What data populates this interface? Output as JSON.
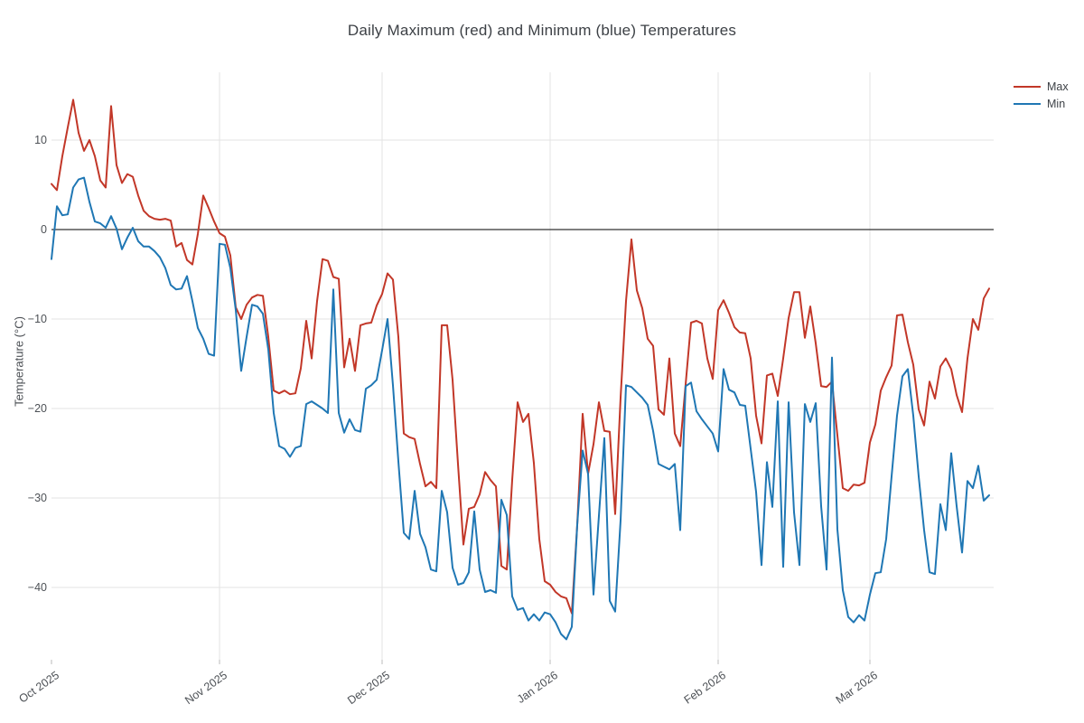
{
  "title": "Daily Maximum (red) and Minimum (blue) Temperatures",
  "y_axis": {
    "label": "Temperature (°C)",
    "ticks": [
      {
        "value": 10,
        "label": "10"
      },
      {
        "value": 0,
        "label": "0"
      },
      {
        "value": -10,
        "label": "−10"
      },
      {
        "value": -20,
        "label": "−20"
      },
      {
        "value": -30,
        "label": "−30"
      },
      {
        "value": -40,
        "label": "−40"
      }
    ]
  },
  "x_axis": {
    "ticks": [
      {
        "label": "Oct 2025",
        "day_index": 0
      },
      {
        "label": "Nov 2025",
        "day_index": 31
      },
      {
        "label": "Dec 2025",
        "day_index": 61
      },
      {
        "label": "Jan 2026",
        "day_index": 92
      },
      {
        "label": "Feb 2026",
        "day_index": 123
      },
      {
        "label": "Mar 2026",
        "day_index": 151
      }
    ]
  },
  "legend": {
    "items": [
      {
        "label": "Max",
        "color": "#c23728"
      },
      {
        "label": "Min",
        "color": "#1f77b4"
      }
    ]
  },
  "colors": {
    "grid": "#e3e3e3",
    "zero_line": "#333333",
    "background": "#ffffff",
    "text": "#4d5156"
  },
  "chart_data": {
    "type": "line",
    "title": "Daily Maximum (red) and Minimum (blue) Temperatures",
    "xlabel": "",
    "ylabel": "Temperature (°C)",
    "x_start": "2025-10-01",
    "x_frequency": "daily",
    "n_points": 174,
    "ylim": [
      -48,
      17.5
    ],
    "grid": true,
    "legend_position": "top-right",
    "zero_line": true,
    "series": [
      {
        "name": "Max",
        "color": "#c23728",
        "values": [
          5.1,
          4.4,
          8.2,
          11.4,
          14.5,
          10.8,
          8.8,
          10,
          8.2,
          5.5,
          4.7,
          13.8,
          7.2,
          5.2,
          6.2,
          5.9,
          3.8,
          2.1,
          1.5,
          1.2,
          1.1,
          1.2,
          1,
          -1.9,
          -1.5,
          -3.4,
          -3.9,
          -0.5,
          3.8,
          2.4,
          0.9,
          -0.4,
          -0.8,
          -2.9,
          -8.7,
          -10,
          -8.4,
          -7.6,
          -7.3,
          -7.4,
          -12,
          -18,
          -18.3,
          -18,
          -18.4,
          -18.3,
          -15.5,
          -10.2,
          -14.4,
          -8,
          -3.3,
          -3.5,
          -5.3,
          -5.5,
          -15.4,
          -12.2,
          -15.8,
          -10.7,
          -10.5,
          -10.4,
          -8.5,
          -7.2,
          -4.9,
          -5.6,
          -12,
          -22.8,
          -23.2,
          -23.4,
          -26.2,
          -28.7,
          -28.2,
          -28.9,
          -10.7,
          -10.7,
          -16.8,
          -26.2,
          -35.2,
          -31.2,
          -31,
          -29.6,
          -27.1,
          -28,
          -28.7,
          -37.6,
          -38,
          -28,
          -19.3,
          -21.5,
          -20.6,
          -26.1,
          -34.6,
          -39.3,
          -39.7,
          -40.5,
          -41,
          -41.2,
          -42.9,
          -33,
          -20.6,
          -27.3,
          -24,
          -19.3,
          -22.5,
          -22.6,
          -31.8,
          -18.8,
          -8,
          -1.1,
          -6.8,
          -8.8,
          -12.2,
          -13,
          -20.1,
          -20.7,
          -14.4,
          -22.8,
          -24.2,
          -17.3,
          -10.4,
          -10.2,
          -10.5,
          -14.4,
          -16.7,
          -9,
          -7.9,
          -9.3,
          -10.9,
          -11.5,
          -11.6,
          -14.4,
          -20.8,
          -23.9,
          -16.3,
          -16.1,
          -18.6,
          -14.4,
          -9.9,
          -7,
          -7,
          -12.1,
          -8.6,
          -12.7,
          -17.5,
          -17.6,
          -17,
          -23,
          -28.9,
          -29.2,
          -28.5,
          -28.6,
          -28.3,
          -23.8,
          -21.8,
          -18,
          -16.5,
          -15.2,
          -9.6,
          -9.5,
          -12.6,
          -15.1,
          -20.1,
          -21.9,
          -17,
          -18.9,
          -15.3,
          -14.4,
          -15.6,
          -18.5,
          -20.4,
          -14.4,
          -10,
          -11.2,
          -7.7,
          -6.6
        ]
      },
      {
        "name": "Min",
        "color": "#1f77b4",
        "values": [
          -3.3,
          2.6,
          1.6,
          1.7,
          4.7,
          5.6,
          5.8,
          3.1,
          0.9,
          0.7,
          0.2,
          1.5,
          0.1,
          -2.2,
          -0.9,
          0.2,
          -1.3,
          -1.9,
          -1.9,
          -2.4,
          -3.1,
          -4.3,
          -6.2,
          -6.7,
          -6.6,
          -5.2,
          -8,
          -11,
          -12.2,
          -13.9,
          -14.1,
          -1.6,
          -1.7,
          -4.3,
          -9,
          -15.8,
          -12,
          -8.4,
          -8.6,
          -9.4,
          -13.4,
          -20.5,
          -24.2,
          -24.5,
          -25.4,
          -24.4,
          -24.2,
          -19.5,
          -19.2,
          -19.6,
          -20,
          -20.5,
          -6.7,
          -20.5,
          -22.7,
          -21.2,
          -22.4,
          -22.6,
          -17.8,
          -17.4,
          -16.8,
          -13.5,
          -10,
          -17.4,
          -25.9,
          -33.9,
          -34.6,
          -29.2,
          -34,
          -35.5,
          -38,
          -38.2,
          -29.2,
          -31.6,
          -37.8,
          -39.7,
          -39.5,
          -38.3,
          -31.5,
          -38,
          -40.5,
          -40.3,
          -40.6,
          -30.2,
          -31.9,
          -41,
          -42.5,
          -42.3,
          -43.7,
          -43,
          -43.7,
          -42.8,
          -43,
          -43.9,
          -45.2,
          -45.8,
          -44.4,
          -33,
          -24.7,
          -27.3,
          -40.8,
          -32,
          -23.3,
          -41.5,
          -42.7,
          -32.5,
          -17.4,
          -17.6,
          -18.2,
          -18.8,
          -19.6,
          -22.5,
          -26.2,
          -26.5,
          -26.8,
          -26.2,
          -33.6,
          -17.5,
          -17.1,
          -20.3,
          -21.2,
          -22,
          -22.8,
          -24.8,
          -15.6,
          -17.9,
          -18.2,
          -19.6,
          -19.7,
          -24.5,
          -29.3,
          -37.5,
          -26,
          -31,
          -19.2,
          -37.7,
          -19.3,
          -31.6,
          -37.5,
          -19.5,
          -21.5,
          -19.4,
          -30.9,
          -38,
          -14.3,
          -33.5,
          -40.3,
          -43.3,
          -43.9,
          -43.1,
          -43.7,
          -40.8,
          -38.4,
          -38.3,
          -34.6,
          -27.6,
          -20.8,
          -16.4,
          -15.6,
          -20.8,
          -27.6,
          -33.6,
          -38.3,
          -38.5,
          -30.7,
          -33.6,
          -25,
          -30.9,
          -36.1,
          -28.1,
          -28.9,
          -26.4,
          -30.3,
          -29.7
        ]
      }
    ]
  }
}
